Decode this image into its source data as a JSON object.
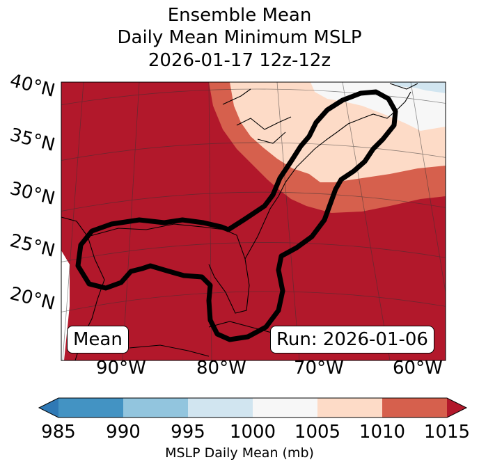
{
  "title_lines": [
    "Ensemble Mean",
    "Daily Mean Minimum MSLP",
    "2026-01-17 12z-12z"
  ],
  "lat_labels": [
    "40°N",
    "35°N",
    "30°N",
    "25°N",
    "20°N"
  ],
  "lon_labels": [
    "90°W",
    "80°W",
    "70°W",
    "60°W"
  ],
  "legend_box": "Mean",
  "run_box": "Run: 2026-01-06",
  "colorbar": {
    "ticks": [
      "985",
      "990",
      "995",
      "1000",
      "1005",
      "1010",
      "1015"
    ],
    "label": "MSLP Daily Mean (mb)",
    "colors": [
      "#2f79b5",
      "#4393c3",
      "#92c5de",
      "#d1e5f0",
      "#f7f7f7",
      "#fddbc7",
      "#d6604d",
      "#b2182b"
    ]
  }
}
